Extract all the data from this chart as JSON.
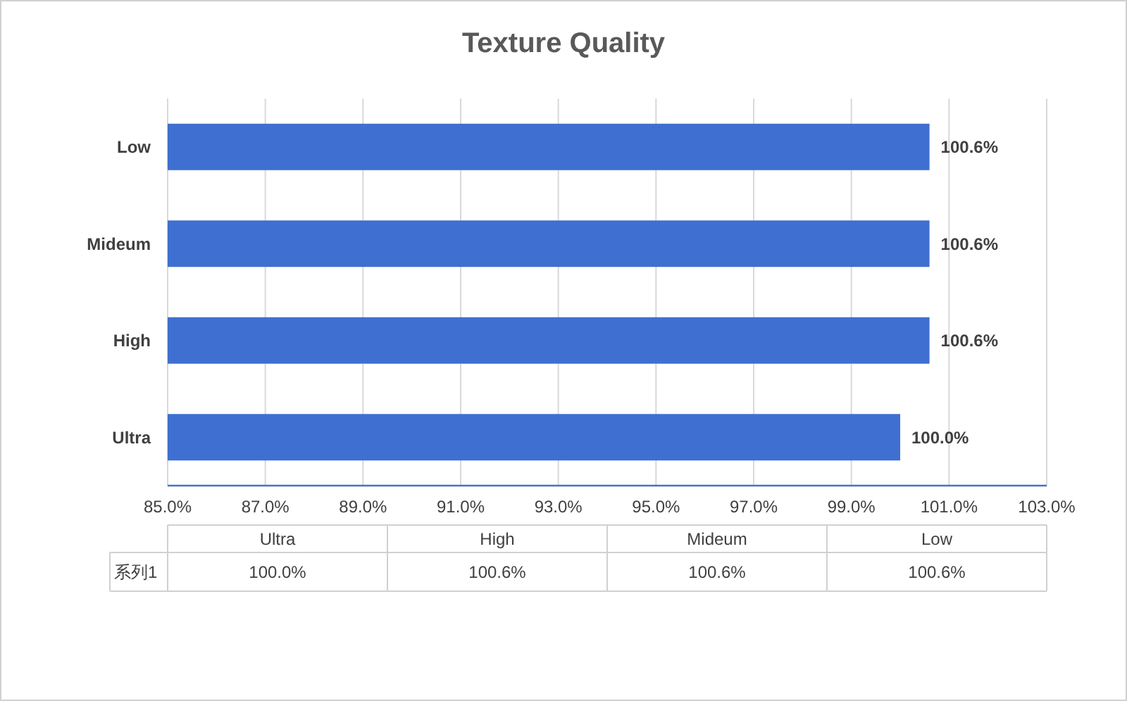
{
  "chart_data": {
    "type": "bar",
    "orientation": "horizontal",
    "title": "Texture Quality",
    "categories": [
      "Low",
      "Mideum",
      "High",
      "Ultra"
    ],
    "series": [
      {
        "name": "系列1",
        "color": "#3f6fd0",
        "values": [
          100.6,
          100.6,
          100.6,
          100.0
        ],
        "value_labels": [
          "100.6%",
          "100.6%",
          "100.6%",
          "100.0%"
        ]
      }
    ],
    "xlim": [
      85,
      103
    ],
    "xticks": [
      {
        "value": 85,
        "label": "85.0%"
      },
      {
        "value": 87,
        "label": "87.0%"
      },
      {
        "value": 89,
        "label": "89.0%"
      },
      {
        "value": 91,
        "label": "91.0%"
      },
      {
        "value": 93,
        "label": "93.0%"
      },
      {
        "value": 95,
        "label": "95.0%"
      },
      {
        "value": 97,
        "label": "97.0%"
      },
      {
        "value": 99,
        "label": "99.0%"
      },
      {
        "value": 101,
        "label": "101.0%"
      },
      {
        "value": 103,
        "label": "103.0%"
      }
    ],
    "grid": "x"
  }
}
